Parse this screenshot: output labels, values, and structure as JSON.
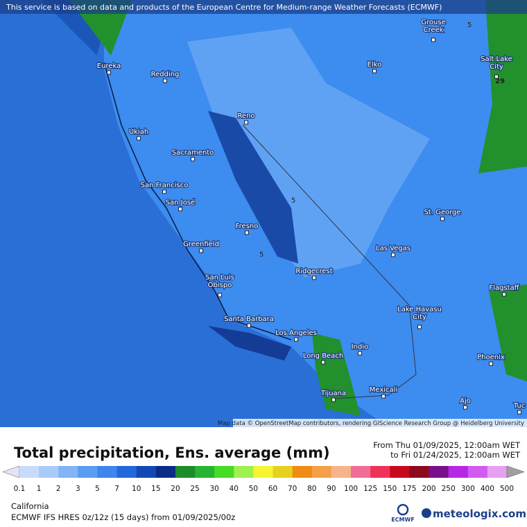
{
  "header": {
    "attribution": "This service is based on data and products of the European Centre for Medium-range Weather Forecasts (ECMWF)"
  },
  "map": {
    "credit": "Map data © OpenStreetMap contributors, rendering GIScience Research Group @ Heidelberg University",
    "cities": [
      {
        "lines": [
          "Eureka"
        ]
      },
      {
        "lines": [
          "Redding"
        ]
      },
      {
        "lines": [
          "Ukiah"
        ]
      },
      {
        "lines": [
          "Sacramento"
        ]
      },
      {
        "lines": [
          "San Francisco"
        ]
      },
      {
        "lines": [
          "San José"
        ]
      },
      {
        "lines": [
          "Reno"
        ]
      },
      {
        "lines": [
          "Fresno"
        ]
      },
      {
        "lines": [
          "Greenfield"
        ]
      },
      {
        "lines": [
          "San Luis",
          "Obispo"
        ]
      },
      {
        "lines": [
          "Santa Barbara"
        ]
      },
      {
        "lines": [
          "Los Angeles"
        ]
      },
      {
        "lines": [
          "Long Beach"
        ]
      },
      {
        "lines": [
          "Indio"
        ]
      },
      {
        "lines": [
          "Mexicali"
        ]
      },
      {
        "lines": [
          "Tijuana"
        ]
      },
      {
        "lines": [
          "Ridgecrest"
        ]
      },
      {
        "lines": [
          "Las Vegas"
        ]
      },
      {
        "lines": [
          "Lake Havasu",
          "City"
        ]
      },
      {
        "lines": [
          "St. George"
        ]
      },
      {
        "lines": [
          "Elko"
        ]
      },
      {
        "lines": [
          "Grouse",
          "Creek"
        ]
      },
      {
        "lines": [
          "Salt Lake",
          "City"
        ]
      },
      {
        "lines": [
          "Flagstaff"
        ]
      },
      {
        "lines": [
          "Phoenix"
        ]
      },
      {
        "lines": [
          "Ajo"
        ]
      },
      {
        "lines": [
          "Tuc"
        ]
      }
    ],
    "contour_labels": [
      "5",
      "5",
      "5",
      "29"
    ]
  },
  "legend": {
    "title": "Total precipitation, Ens. average (mm)",
    "from": "From Thu 01/09/2025, 12:00am WET",
    "to": "to Fri 01/24/2025, 12:00am WET",
    "labels": [
      0.1,
      1,
      2,
      3,
      5,
      7,
      10,
      15,
      20,
      25,
      30,
      40,
      50,
      60,
      70,
      80,
      90,
      100,
      125,
      150,
      175,
      200,
      250,
      300,
      400,
      500
    ],
    "colors": [
      "#e4e4f8",
      "#c8dcfa",
      "#a8ccf8",
      "#82b4f6",
      "#5a9cf2",
      "#3c86ee",
      "#2268dc",
      "#1448b4",
      "#0a2c86",
      "#1e8c2a",
      "#28b432",
      "#46dc28",
      "#a0f050",
      "#f5f532",
      "#e6d21e",
      "#f08c14",
      "#f5a046",
      "#f5b48c",
      "#f06e96",
      "#f0325a",
      "#c80a1e",
      "#8c0a1e",
      "#78108c",
      "#b428e6",
      "#d25af0",
      "#e6a0f0",
      "#f8e6fa",
      "#d2d2d2",
      "#a0a0a0"
    ]
  },
  "footer": {
    "region": "California",
    "model": "ECMWF IFS HRES 0z/12z (15 days) from 01/09/2025/00z",
    "ecmwf": "ECMWF",
    "brand": "meteologix.com"
  }
}
